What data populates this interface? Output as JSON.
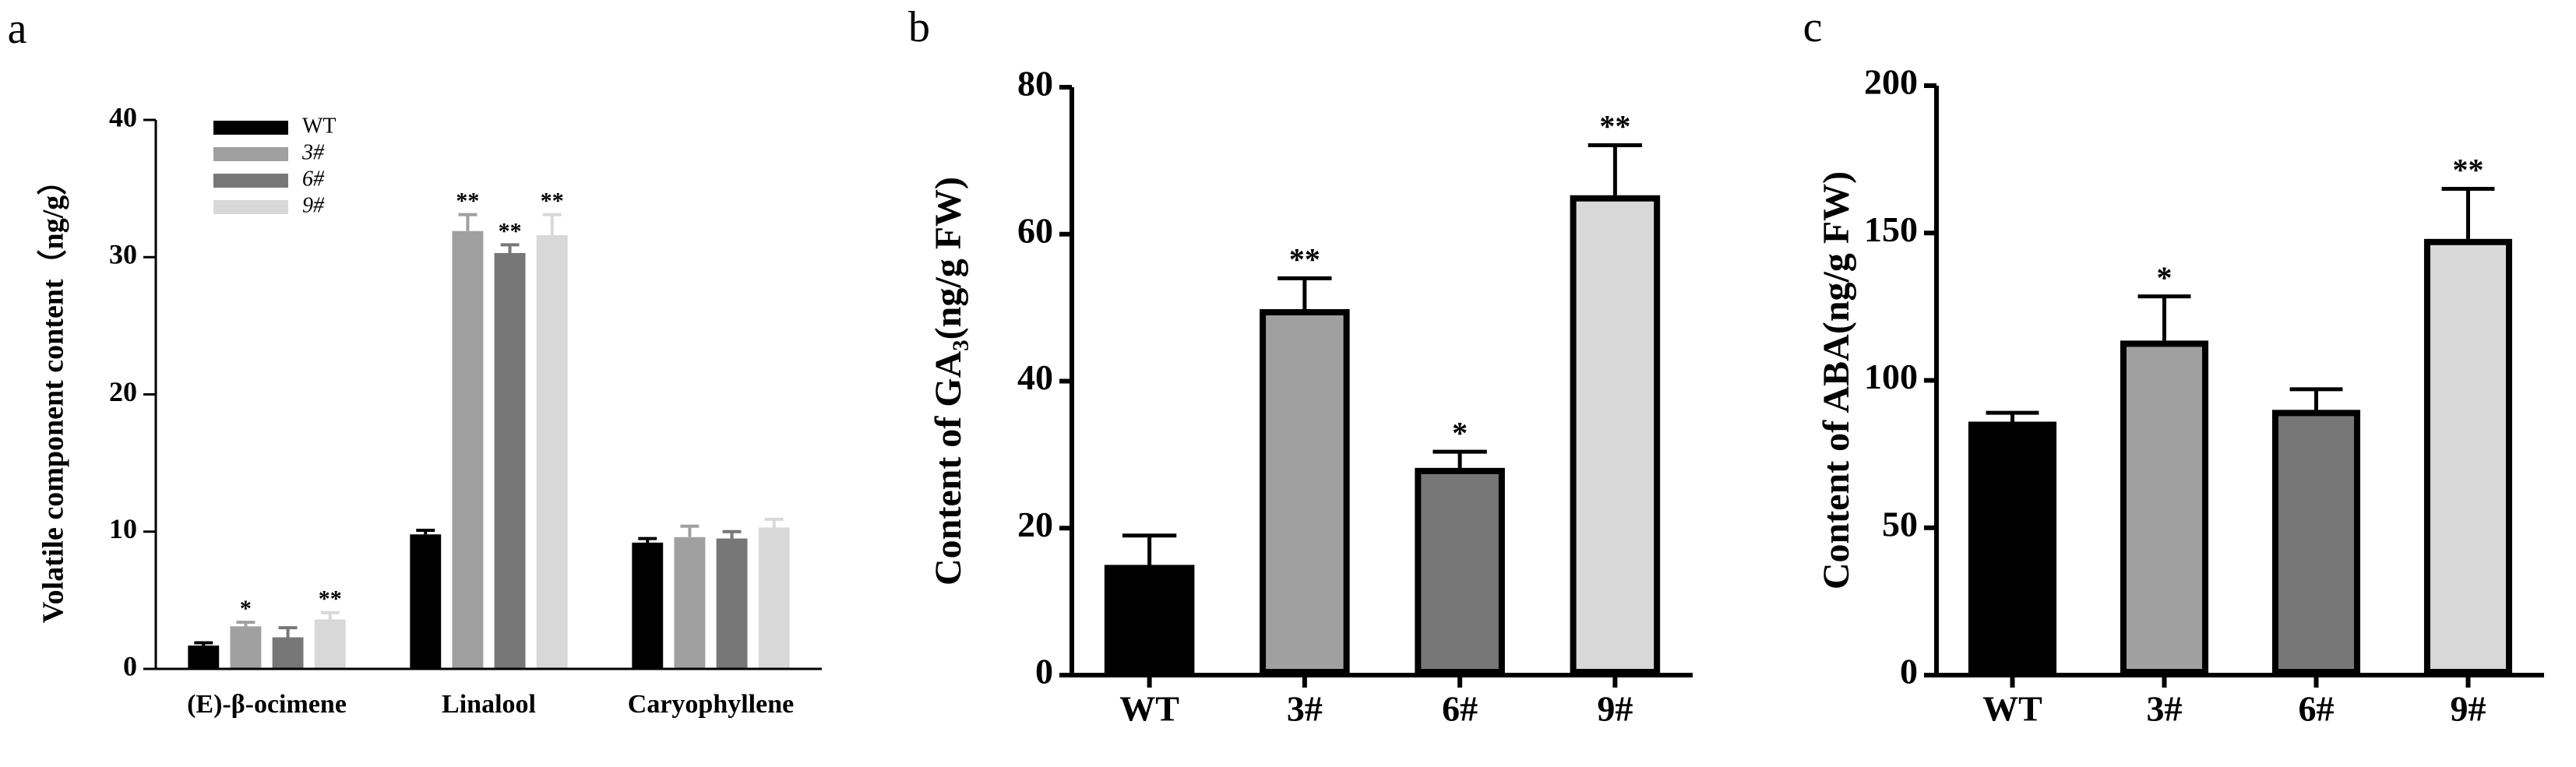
{
  "chart_data": [
    {
      "type": "bar",
      "label": "a",
      "ylabel": "Volatile component content（ng/g）",
      "categories": [
        "(E)-β-ocimene",
        "Linalool",
        "Caryophyllene"
      ],
      "series": [
        {
          "name": "WT",
          "color": "#000000",
          "values": [
            1.7,
            9.8,
            9.2
          ],
          "errors": [
            0.2,
            0.3,
            0.3
          ],
          "significance": [
            null,
            null,
            null
          ]
        },
        {
          "name": "3#",
          "color": "#a0a0a0",
          "values": [
            3.1,
            31.9,
            9.6
          ],
          "errors": [
            0.3,
            1.2,
            0.8
          ],
          "significance": [
            "*",
            "**",
            null
          ]
        },
        {
          "name": "6#",
          "color": "#777777",
          "values": [
            2.3,
            30.3,
            9.5
          ],
          "errors": [
            0.7,
            0.6,
            0.5
          ],
          "significance": [
            null,
            "**",
            null
          ]
        },
        {
          "name": "9#",
          "color": "#d8d8d8",
          "values": [
            3.6,
            31.6,
            10.3
          ],
          "errors": [
            0.5,
            1.5,
            0.6
          ],
          "significance": [
            "**",
            "**",
            null
          ]
        }
      ],
      "ylim": [
        0,
        40
      ],
      "yticks": [
        0,
        10,
        20,
        30,
        40
      ],
      "legend": "top-left"
    },
    {
      "type": "bar",
      "label": "b",
      "ylabel": "Content of GA₃(ng/g FW)",
      "categories": [
        "WT",
        "3#",
        "6#",
        "9#"
      ],
      "values": [
        15,
        49.8,
        28.2,
        65.3
      ],
      "errors": [
        4,
        4.2,
        2.2,
        6.8
      ],
      "significance": [
        null,
        "**",
        "*",
        "**"
      ],
      "colors": [
        "#000000",
        "#a0a0a0",
        "#777777",
        "#d8d8d8"
      ],
      "ylim": [
        0,
        80
      ],
      "yticks": [
        0,
        20,
        40,
        60,
        80
      ]
    },
    {
      "type": "bar",
      "label": "c",
      "ylabel": "Content of ABA(ng/g FW)",
      "categories": [
        "WT",
        "3#",
        "6#",
        "9#"
      ],
      "values": [
        86,
        113.5,
        90,
        148
      ],
      "errors": [
        3,
        15,
        7,
        17
      ],
      "significance": [
        null,
        "*",
        null,
        "**"
      ],
      "colors": [
        "#000000",
        "#a0a0a0",
        "#777777",
        "#d8d8d8"
      ],
      "ylim": [
        0,
        200
      ],
      "yticks": [
        0,
        50,
        100,
        150,
        200
      ]
    }
  ]
}
